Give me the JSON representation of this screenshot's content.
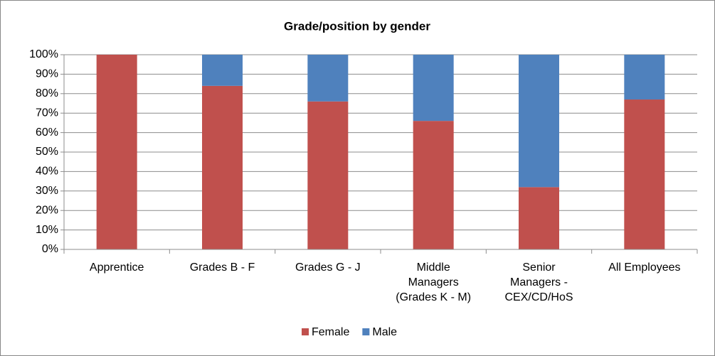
{
  "chart_data": {
    "type": "stacked_bar",
    "title": "Grade/position by gender",
    "categories": [
      "Apprentice",
      "Grades B - F",
      "Grades G - J",
      "Middle Managers (Grades K - M)",
      "Senior Managers - CEX/CD/HoS",
      "All Employees"
    ],
    "series": [
      {
        "name": "Female",
        "color": "#c0504d",
        "values": [
          100,
          84,
          76,
          66,
          32,
          77
        ]
      },
      {
        "name": "Male",
        "color": "#4f81bd",
        "values": [
          0,
          16,
          24,
          34,
          68,
          23
        ]
      }
    ],
    "ylim": [
      0,
      100
    ],
    "yticks": [
      {
        "value": 0,
        "label": "0%"
      },
      {
        "value": 10,
        "label": "10%"
      },
      {
        "value": 20,
        "label": "20%"
      },
      {
        "value": 30,
        "label": "30%"
      },
      {
        "value": 40,
        "label": "40%"
      },
      {
        "value": 50,
        "label": "50%"
      },
      {
        "value": 60,
        "label": "60%"
      },
      {
        "value": 70,
        "label": "70%"
      },
      {
        "value": 80,
        "label": "80%"
      },
      {
        "value": 90,
        "label": "90%"
      },
      {
        "value": 100,
        "label": "100%"
      }
    ],
    "grid": true,
    "legend": "bottom"
  }
}
